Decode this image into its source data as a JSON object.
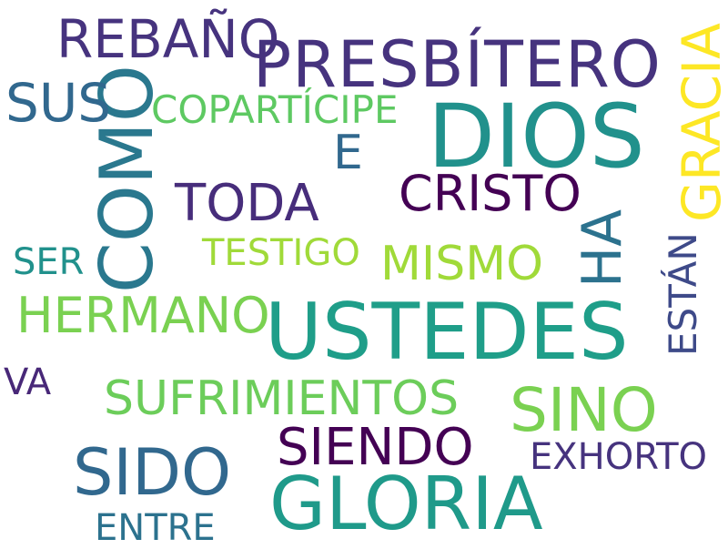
{
  "words": [
    {
      "text": "PRESBÍTERO",
      "color": "#46337e"
    },
    {
      "text": "DIOS",
      "color": "#21918c"
    },
    {
      "text": "USTEDES",
      "color": "#1f9e89"
    },
    {
      "text": "GLORIA",
      "color": "#1f9a8a"
    },
    {
      "text": "COMO",
      "color": "#2a788e"
    },
    {
      "text": "REBAÑO",
      "color": "#46337e"
    },
    {
      "text": "GRACIA",
      "color": "#fde725"
    },
    {
      "text": "SUS",
      "color": "#31688e"
    },
    {
      "text": "COPARTÍCIPE",
      "color": "#5ec962"
    },
    {
      "text": "E",
      "color": "#31688e"
    },
    {
      "text": "TODA",
      "color": "#472d7b"
    },
    {
      "text": "CRISTO",
      "color": "#440154"
    },
    {
      "text": "HA",
      "color": "#2c728e"
    },
    {
      "text": "TESTIGO",
      "color": "#a0da39"
    },
    {
      "text": "MISMO",
      "color": "#a0da39"
    },
    {
      "text": "SER",
      "color": "#21918c"
    },
    {
      "text": "HERMANO",
      "color": "#7ad151"
    },
    {
      "text": "ESTÁN",
      "color": "#3e4a89"
    },
    {
      "text": "VA",
      "color": "#482878"
    },
    {
      "text": "SUFRIMIENTOS",
      "color": "#6ccd5a"
    },
    {
      "text": "SINO",
      "color": "#7ad151"
    },
    {
      "text": "SIENDO",
      "color": "#440154"
    },
    {
      "text": "SIDO",
      "color": "#31688e"
    },
    {
      "text": "EXHORTO",
      "color": "#46337e"
    },
    {
      "text": "ENTRE",
      "color": "#2c728e"
    }
  ]
}
